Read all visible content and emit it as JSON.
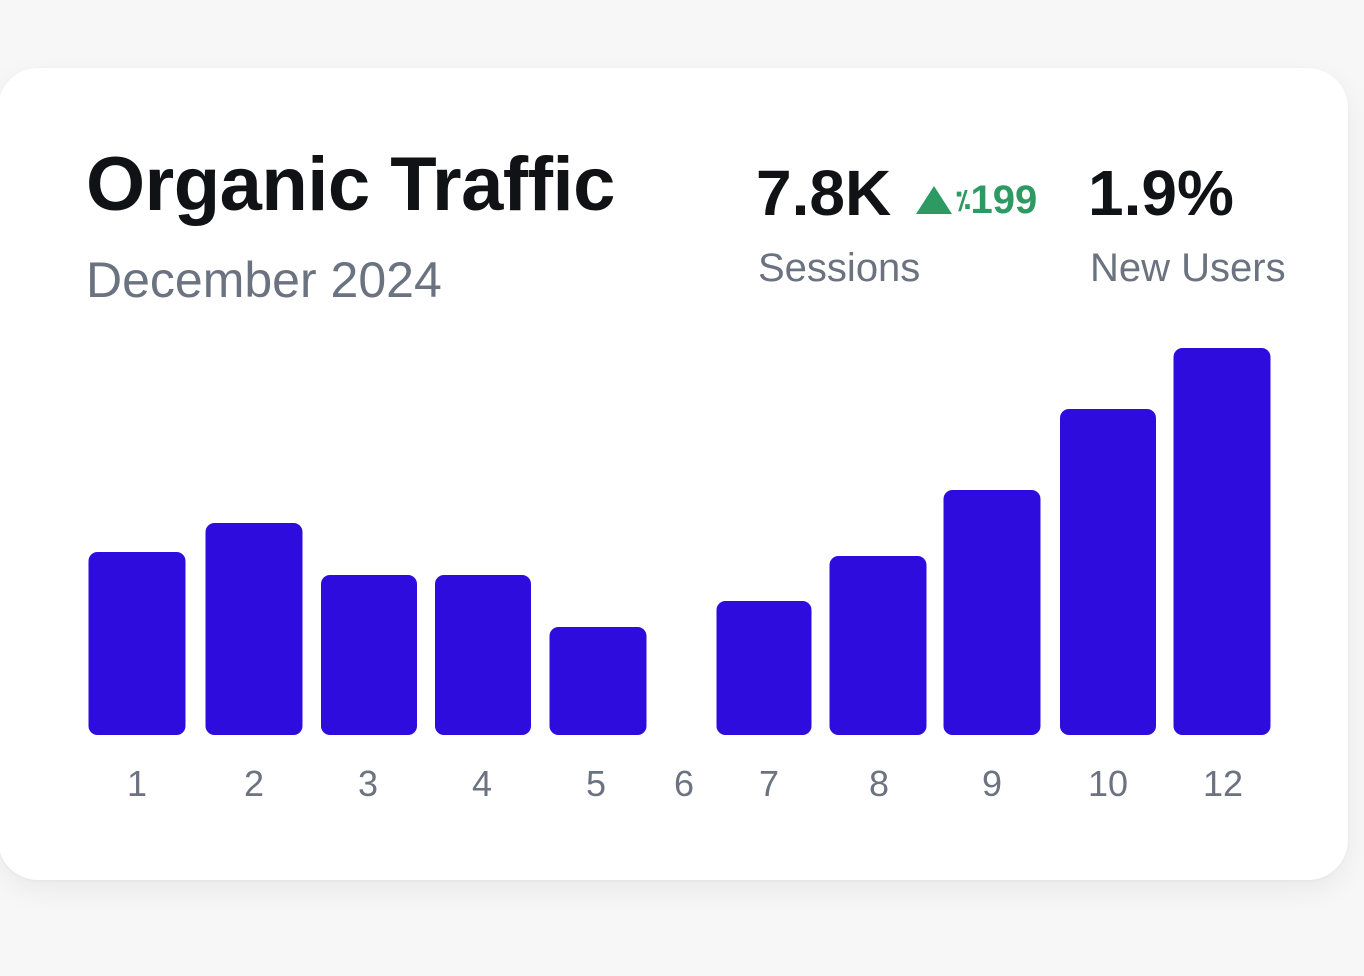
{
  "header": {
    "title": "Organic Traffic",
    "subtitle": "December 2024"
  },
  "kpis": {
    "sessions": {
      "value": "7.8K",
      "label": "Sessions",
      "delta": "199",
      "delta_glyph": "⁒"
    },
    "new_users": {
      "value": "1.9%",
      "label": "New Users"
    }
  },
  "colors": {
    "bar": "#2d0cdd",
    "positive": "#2e9a63"
  },
  "chart_data": {
    "type": "bar",
    "title": "Organic Traffic",
    "subtitle": "December 2024",
    "xlabel": "",
    "ylabel": "",
    "grid": false,
    "categories": [
      "1",
      "2",
      "3",
      "4",
      "5",
      "6",
      "7",
      "8",
      "9",
      "10",
      "12"
    ],
    "values": [
      183,
      212,
      160,
      160,
      108,
      0,
      134,
      179,
      245,
      326,
      387
    ],
    "ylim": [
      0,
      400
    ]
  }
}
